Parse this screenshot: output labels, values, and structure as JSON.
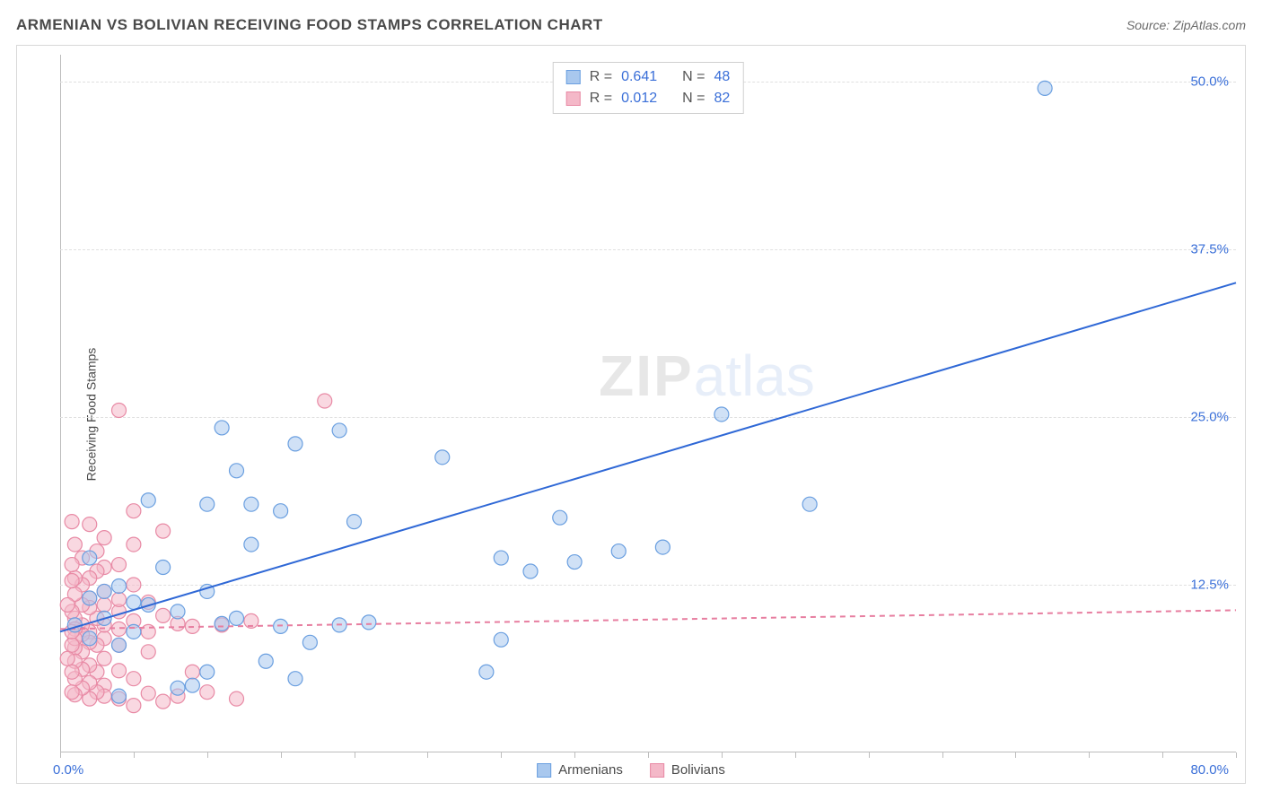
{
  "title": "ARMENIAN VS BOLIVIAN RECEIVING FOOD STAMPS CORRELATION CHART",
  "source_label": "Source: ZipAtlas.com",
  "watermark_zip": "ZIP",
  "watermark_atlas": "atlas",
  "y_axis_title": "Receiving Food Stamps",
  "chart": {
    "type": "scatter",
    "xlim": [
      0,
      80
    ],
    "ylim": [
      0,
      52
    ],
    "x_origin_label": "0.0%",
    "x_max_label": "80.0%",
    "x_ticks": [
      0,
      5,
      10,
      15,
      20,
      25,
      30,
      35,
      40,
      45,
      50,
      55,
      60,
      65,
      70,
      75,
      80
    ],
    "y_ticks": [
      {
        "v": 12.5,
        "label": "12.5%"
      },
      {
        "v": 25.0,
        "label": "25.0%"
      },
      {
        "v": 37.5,
        "label": "37.5%"
      },
      {
        "v": 50.0,
        "label": "50.0%"
      }
    ],
    "grid_color": "#e0e0e0",
    "axis_color": "#bdbdbd",
    "background_color": "#ffffff",
    "marker_radius": 8,
    "marker_opacity": 0.55,
    "line_width": 2,
    "series": [
      {
        "name": "Armenians",
        "color_fill": "#a9c8ee",
        "color_stroke": "#6a9fe0",
        "trend_color": "#2f68d6",
        "trend_dash": "none",
        "trend": {
          "x1": 0,
          "y1": 9.0,
          "x2": 80,
          "y2": 35.0
        },
        "R": "0.641",
        "N": "48",
        "points": [
          [
            67,
            49.5
          ],
          [
            45,
            25.2
          ],
          [
            51,
            18.5
          ],
          [
            41,
            15.3
          ],
          [
            38,
            15.0
          ],
          [
            35,
            14.2
          ],
          [
            34,
            17.5
          ],
          [
            32,
            13.5
          ],
          [
            30,
            14.5
          ],
          [
            30,
            8.4
          ],
          [
            29,
            6.0
          ],
          [
            26,
            22.0
          ],
          [
            21,
            9.7
          ],
          [
            20,
            17.2
          ],
          [
            19,
            9.5
          ],
          [
            19,
            24.0
          ],
          [
            17,
            8.2
          ],
          [
            16,
            5.5
          ],
          [
            16,
            23.0
          ],
          [
            15,
            18.0
          ],
          [
            15,
            9.4
          ],
          [
            14,
            6.8
          ],
          [
            13,
            18.5
          ],
          [
            13,
            15.5
          ],
          [
            12,
            21.0
          ],
          [
            12,
            10.0
          ],
          [
            11,
            9.6
          ],
          [
            11,
            24.2
          ],
          [
            10,
            18.5
          ],
          [
            10,
            12.0
          ],
          [
            10,
            6.0
          ],
          [
            9,
            5.0
          ],
          [
            8,
            10.5
          ],
          [
            8,
            4.8
          ],
          [
            7,
            13.8
          ],
          [
            6,
            11.0
          ],
          [
            6,
            18.8
          ],
          [
            5,
            11.2
          ],
          [
            5,
            9.0
          ],
          [
            4,
            12.4
          ],
          [
            4,
            8.0
          ],
          [
            4,
            4.2
          ],
          [
            3,
            10.0
          ],
          [
            3,
            12.0
          ],
          [
            2,
            11.5
          ],
          [
            2,
            8.5
          ],
          [
            2,
            14.5
          ],
          [
            1,
            9.5
          ]
        ]
      },
      {
        "name": "Bolivians",
        "color_fill": "#f4b8c8",
        "color_stroke": "#e88aa5",
        "trend_color": "#e77ea0",
        "trend_dash": "6,5",
        "trend": {
          "x1": 0,
          "y1": 9.2,
          "x2": 80,
          "y2": 10.6
        },
        "R": "0.012",
        "N": "82",
        "points": [
          [
            18,
            26.2
          ],
          [
            4,
            25.5
          ],
          [
            13,
            9.8
          ],
          [
            12,
            4.0
          ],
          [
            11,
            9.5
          ],
          [
            10,
            4.5
          ],
          [
            9,
            9.4
          ],
          [
            9,
            6.0
          ],
          [
            8,
            4.2
          ],
          [
            8,
            9.6
          ],
          [
            7,
            10.2
          ],
          [
            7,
            3.8
          ],
          [
            7,
            16.5
          ],
          [
            6,
            9.0
          ],
          [
            6,
            11.2
          ],
          [
            6,
            4.4
          ],
          [
            6,
            7.5
          ],
          [
            5,
            9.8
          ],
          [
            5,
            12.5
          ],
          [
            5,
            5.5
          ],
          [
            5,
            15.5
          ],
          [
            5,
            3.5
          ],
          [
            5,
            18.0
          ],
          [
            4,
            10.5
          ],
          [
            4,
            6.1
          ],
          [
            4,
            14.0
          ],
          [
            4,
            8.0
          ],
          [
            4,
            4.0
          ],
          [
            4,
            11.4
          ],
          [
            4,
            9.2
          ],
          [
            3,
            13.8
          ],
          [
            3,
            8.5
          ],
          [
            3,
            5.0
          ],
          [
            3,
            11.0
          ],
          [
            3,
            7.0
          ],
          [
            3,
            16.0
          ],
          [
            3,
            9.5
          ],
          [
            3,
            4.2
          ],
          [
            3,
            12.0
          ],
          [
            2.5,
            10.0
          ],
          [
            2.5,
            6.0
          ],
          [
            2.5,
            13.5
          ],
          [
            2.5,
            8.0
          ],
          [
            2.5,
            4.5
          ],
          [
            2.5,
            15.0
          ],
          [
            2,
            9.0
          ],
          [
            2,
            11.5
          ],
          [
            2,
            6.5
          ],
          [
            2,
            4.0
          ],
          [
            2,
            13.0
          ],
          [
            2,
            8.2
          ],
          [
            2,
            10.8
          ],
          [
            2,
            5.2
          ],
          [
            2,
            17.0
          ],
          [
            1.5,
            9.5
          ],
          [
            1.5,
            7.5
          ],
          [
            1.5,
            12.5
          ],
          [
            1.5,
            4.8
          ],
          [
            1.5,
            11.0
          ],
          [
            1.5,
            6.2
          ],
          [
            1.5,
            14.5
          ],
          [
            1.5,
            8.8
          ],
          [
            1,
            10.0
          ],
          [
            1,
            5.5
          ],
          [
            1,
            13.0
          ],
          [
            1,
            7.8
          ],
          [
            1,
            9.2
          ],
          [
            1,
            4.3
          ],
          [
            1,
            11.8
          ],
          [
            1,
            6.8
          ],
          [
            1,
            15.5
          ],
          [
            1,
            8.5
          ],
          [
            0.8,
            17.2
          ],
          [
            0.8,
            10.5
          ],
          [
            0.8,
            6.0
          ],
          [
            0.8,
            12.8
          ],
          [
            0.8,
            4.5
          ],
          [
            0.8,
            8.0
          ],
          [
            0.8,
            14.0
          ],
          [
            0.8,
            9.0
          ],
          [
            0.5,
            11.0
          ],
          [
            0.5,
            7.0
          ]
        ]
      }
    ]
  },
  "legend": {
    "series1_label": "Armenians",
    "series2_label": "Bolivians"
  },
  "stats_labels": {
    "R": "R =",
    "N": "N ="
  }
}
